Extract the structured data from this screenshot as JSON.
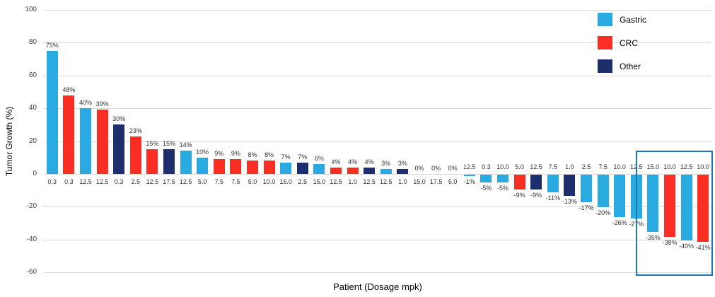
{
  "chart_data": {
    "type": "bar",
    "title": "",
    "xlabel": "Patient (Dosage mpk)",
    "ylabel": "Tumor Growth (%)",
    "ylim": [
      -60,
      100
    ],
    "yticks": [
      100,
      80,
      60,
      40,
      20,
      0,
      -20,
      -40,
      -60
    ],
    "grid": true,
    "legend_position": "top-right",
    "legend": [
      {
        "label": "Gastric",
        "color": "#29abe2"
      },
      {
        "label": "CRC",
        "color": "#fb2e25"
      },
      {
        "label": "Other",
        "color": "#1c2e6b"
      }
    ],
    "highlight_box_color": "#1b75bc",
    "highlight_box": {
      "start_index": 36,
      "end_index": 39
    },
    "bars": [
      {
        "dosage": "0.3",
        "value": 75,
        "label": "75%",
        "category": "Gastric"
      },
      {
        "dosage": "0.3",
        "value": 48,
        "label": "48%",
        "category": "CRC"
      },
      {
        "dosage": "12.5",
        "value": 40,
        "label": "40%",
        "category": "Gastric"
      },
      {
        "dosage": "12.5",
        "value": 39,
        "label": "39%",
        "category": "CRC"
      },
      {
        "dosage": "0.3",
        "value": 30,
        "label": "30%",
        "category": "Other"
      },
      {
        "dosage": "2.5",
        "value": 23,
        "label": "23%",
        "category": "CRC"
      },
      {
        "dosage": "12.5",
        "value": 15,
        "label": "15%",
        "category": "CRC"
      },
      {
        "dosage": "17.5",
        "value": 15,
        "label": "15%",
        "category": "Other"
      },
      {
        "dosage": "12.5",
        "value": 14,
        "label": "14%",
        "category": "Gastric"
      },
      {
        "dosage": "5.0",
        "value": 10,
        "label": "10%",
        "category": "Gastric"
      },
      {
        "dosage": "7.5",
        "value": 9,
        "label": "9%",
        "category": "CRC"
      },
      {
        "dosage": "7.5",
        "value": 9,
        "label": "9%",
        "category": "CRC"
      },
      {
        "dosage": "5.0",
        "value": 8,
        "label": "8%",
        "category": "CRC"
      },
      {
        "dosage": "10.0",
        "value": 8,
        "label": "8%",
        "category": "CRC"
      },
      {
        "dosage": "15.0",
        "value": 7,
        "label": "7%",
        "category": "Gastric"
      },
      {
        "dosage": "2.5",
        "value": 7,
        "label": "7%",
        "category": "Other"
      },
      {
        "dosage": "15.0",
        "value": 6,
        "label": "6%",
        "category": "Gastric"
      },
      {
        "dosage": "12.5",
        "value": 4,
        "label": "4%",
        "category": "CRC"
      },
      {
        "dosage": "1.0",
        "value": 4,
        "label": "4%",
        "category": "CRC"
      },
      {
        "dosage": "12.5",
        "value": 4,
        "label": "4%",
        "category": "Other"
      },
      {
        "dosage": "12.5",
        "value": 3,
        "label": "3%",
        "category": "Gastric"
      },
      {
        "dosage": "1.0",
        "value": 3,
        "label": "3%",
        "category": "Other"
      },
      {
        "dosage": "15.0",
        "value": 0,
        "label": "0%",
        "category": null
      },
      {
        "dosage": "17.5",
        "value": 0,
        "label": "0%",
        "category": null
      },
      {
        "dosage": "5.0",
        "value": 0,
        "label": "0%",
        "category": null
      },
      {
        "dosage": "12.5",
        "value": -1,
        "label": "-1%",
        "category": "Gastric"
      },
      {
        "dosage": "0.3",
        "value": -5,
        "label": "-5%",
        "category": "Gastric"
      },
      {
        "dosage": "10.0",
        "value": -5,
        "label": "-5%",
        "category": "Gastric"
      },
      {
        "dosage": "5.0",
        "value": -9,
        "label": "-9%",
        "category": "CRC"
      },
      {
        "dosage": "12.5",
        "value": -9,
        "label": "-9%",
        "category": "Other"
      },
      {
        "dosage": "7.5",
        "value": -11,
        "label": "-11%",
        "category": "Gastric"
      },
      {
        "dosage": "1.0",
        "value": -13,
        "label": "-13%",
        "category": "Other"
      },
      {
        "dosage": "2.5",
        "value": -17,
        "label": "-17%",
        "category": "Gastric"
      },
      {
        "dosage": "7.5",
        "value": -20,
        "label": "-20%",
        "category": "Gastric"
      },
      {
        "dosage": "10.0",
        "value": -26,
        "label": "-26%",
        "category": "Gastric"
      },
      {
        "dosage": "12.5",
        "value": -27,
        "label": "-27%",
        "category": "Gastric"
      },
      {
        "dosage": "15.0",
        "value": -35,
        "label": "-35%",
        "category": "Gastric"
      },
      {
        "dosage": "10.0",
        "value": -38,
        "label": "-38%",
        "category": "CRC"
      },
      {
        "dosage": "12.5",
        "value": -40,
        "label": "-40%",
        "category": "Gastric"
      },
      {
        "dosage": "10.0",
        "value": -41,
        "label": "-41%",
        "category": "CRC"
      }
    ]
  }
}
